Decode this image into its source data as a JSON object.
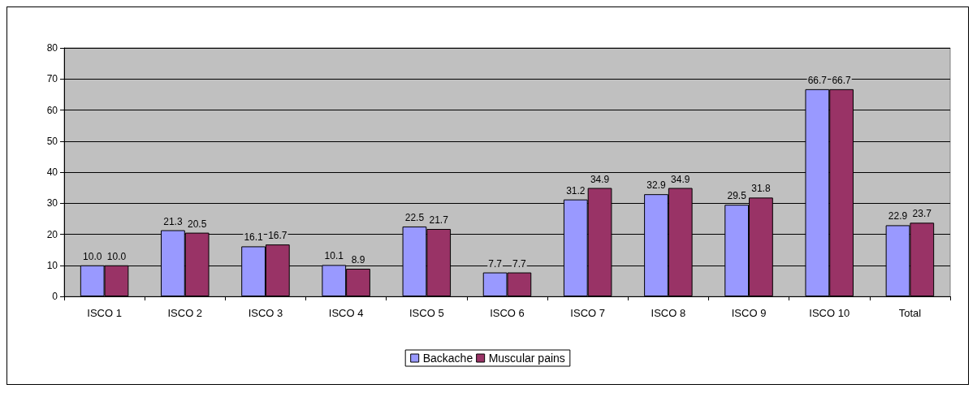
{
  "chart_data": {
    "type": "bar",
    "categories": [
      "ISCO 1",
      "ISCO 2",
      "ISCO 3",
      "ISCO 4",
      "ISCO 5",
      "ISCO 6",
      "ISCO 7",
      "ISCO 8",
      "ISCO 9",
      "ISCO 10",
      "Total"
    ],
    "series": [
      {
        "name": "Backache",
        "color": "#9999ff",
        "values": [
          10.0,
          21.3,
          16.1,
          10.1,
          22.5,
          7.7,
          31.2,
          32.9,
          29.5,
          66.7,
          22.9
        ],
        "value_labels": [
          "10.0",
          "21.3",
          "16.1",
          "10.1",
          "22.5",
          "7.7",
          "31.2",
          "32.9",
          "29.5",
          "66.7",
          "22.9"
        ]
      },
      {
        "name": "Muscular pains",
        "color": "#993366",
        "values": [
          10.0,
          20.5,
          16.7,
          8.9,
          21.7,
          7.7,
          34.9,
          34.9,
          31.8,
          66.7,
          23.7
        ],
        "value_labels": [
          "10.0",
          "20.5",
          "16.7",
          "8.9",
          "21.7",
          "7.7",
          "34.9",
          "34.9",
          "31.8",
          "66.7",
          "23.7"
        ]
      }
    ],
    "ylim": [
      0,
      80
    ],
    "yticks": [
      0,
      10,
      20,
      30,
      40,
      50,
      60,
      70,
      80
    ],
    "grid": "y",
    "legend": "bottom"
  }
}
